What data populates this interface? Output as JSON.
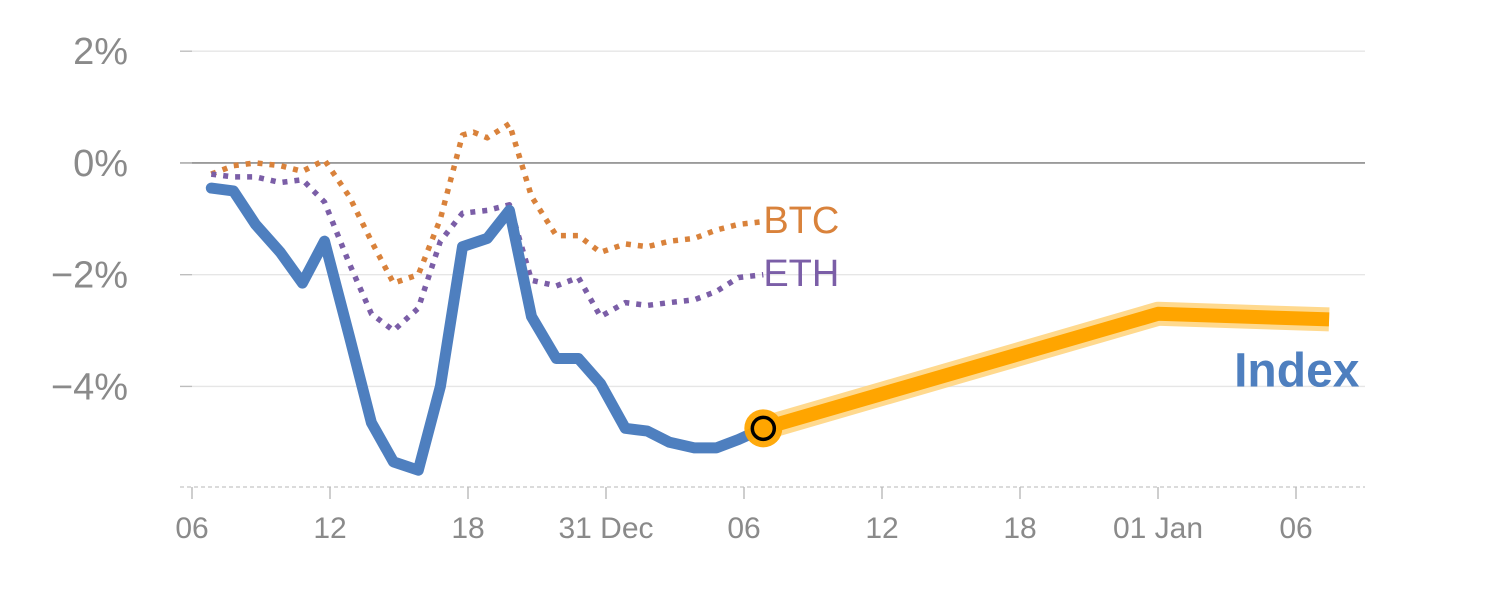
{
  "chart_data": {
    "type": "line",
    "title": "",
    "xlabel": "",
    "ylabel": "",
    "xlim": [
      0,
      42.5
    ],
    "ylim": [
      -5.8,
      2.2
    ],
    "y_ticks": [
      {
        "value": 2,
        "label": "2%"
      },
      {
        "value": 0,
        "label": "0%"
      },
      {
        "value": -2,
        "label": "−2%"
      },
      {
        "value": -4,
        "label": "−4%"
      }
    ],
    "x_ticks": [
      {
        "value": 0,
        "label": "06"
      },
      {
        "value": 5,
        "label": "12"
      },
      {
        "value": 10,
        "label": "18"
      },
      {
        "value": 15,
        "label": "31 Dec"
      },
      {
        "value": 20,
        "label": "06"
      },
      {
        "value": 25,
        "label": "12"
      },
      {
        "value": 30,
        "label": "18"
      },
      {
        "value": 35,
        "label": "01 Jan"
      },
      {
        "value": 40,
        "label": "06"
      }
    ],
    "grid": true,
    "zero_line": true,
    "series": [
      {
        "name": "BTC",
        "style": "dotted",
        "color": "#d9823b",
        "x": [
          0.7,
          1.5,
          2.3,
          3.2,
          4.0,
          4.8,
          5.7,
          6.5,
          7.3,
          8.2,
          9.0,
          9.8,
          10.2,
          10.7,
          11.5,
          12.3,
          13.2,
          14.0,
          14.8,
          15.7,
          16.5,
          17.3,
          18.2,
          19.0,
          19.8,
          20.7
        ],
        "values": [
          -0.2,
          -0.05,
          0.0,
          -0.05,
          -0.15,
          0.05,
          -0.6,
          -1.4,
          -2.15,
          -2.0,
          -1.0,
          0.5,
          0.55,
          0.45,
          0.7,
          -0.6,
          -1.3,
          -1.3,
          -1.6,
          -1.45,
          -1.5,
          -1.4,
          -1.35,
          -1.2,
          -1.1,
          -1.05
        ]
      },
      {
        "name": "ETH",
        "style": "dotted",
        "color": "#7b5ea7",
        "x": [
          0.7,
          1.5,
          2.3,
          3.2,
          4.0,
          4.8,
          5.7,
          6.5,
          7.3,
          8.2,
          9.0,
          9.8,
          10.7,
          11.5,
          12.3,
          13.2,
          14.0,
          14.8,
          15.7,
          16.5,
          17.3,
          18.2,
          19.0,
          19.8,
          20.7
        ],
        "values": [
          -0.2,
          -0.25,
          -0.25,
          -0.35,
          -0.3,
          -0.7,
          -1.8,
          -2.7,
          -3.0,
          -2.6,
          -1.4,
          -0.9,
          -0.85,
          -0.75,
          -2.1,
          -2.2,
          -2.05,
          -2.75,
          -2.5,
          -2.55,
          -2.5,
          -2.45,
          -2.3,
          -2.05,
          -2.0
        ]
      },
      {
        "name": "Index",
        "style": "solid",
        "color": "#4e7fbf",
        "x": [
          0.7,
          1.5,
          2.3,
          3.2,
          4.0,
          4.8,
          5.7,
          6.5,
          7.3,
          8.2,
          9.0,
          9.8,
          10.7,
          11.5,
          12.3,
          13.2,
          14.0,
          14.8,
          15.7,
          16.5,
          17.3,
          18.2,
          19.0,
          19.8,
          20.7
        ],
        "values": [
          -0.45,
          -0.5,
          -1.1,
          -1.6,
          -2.15,
          -1.4,
          -3.1,
          -4.65,
          -5.35,
          -5.5,
          -4.0,
          -1.5,
          -1.35,
          -0.85,
          -2.75,
          -3.5,
          -3.5,
          -3.95,
          -4.75,
          -4.8,
          -5.0,
          -5.1,
          -5.1,
          -4.95,
          -4.75
        ]
      },
      {
        "name": "Index projection",
        "style": "highlight",
        "color": "#ffa500",
        "x": [
          20.7,
          35.0,
          41.2
        ],
        "values": [
          -4.75,
          -2.7,
          -2.8
        ]
      }
    ],
    "marker": {
      "x": 20.7,
      "y": -4.75,
      "fill": "#ffa500",
      "stroke": "#000000"
    },
    "labels": {
      "btc": {
        "text": "BTC",
        "color": "#d9823b",
        "x": 20.7,
        "y": -1.0
      },
      "eth": {
        "text": "ETH",
        "color": "#7b5ea7",
        "x": 20.7,
        "y": -1.95
      },
      "index": {
        "text": "Index",
        "color": "#4e7fbf",
        "x": 42.3,
        "y": -3.75
      }
    }
  }
}
